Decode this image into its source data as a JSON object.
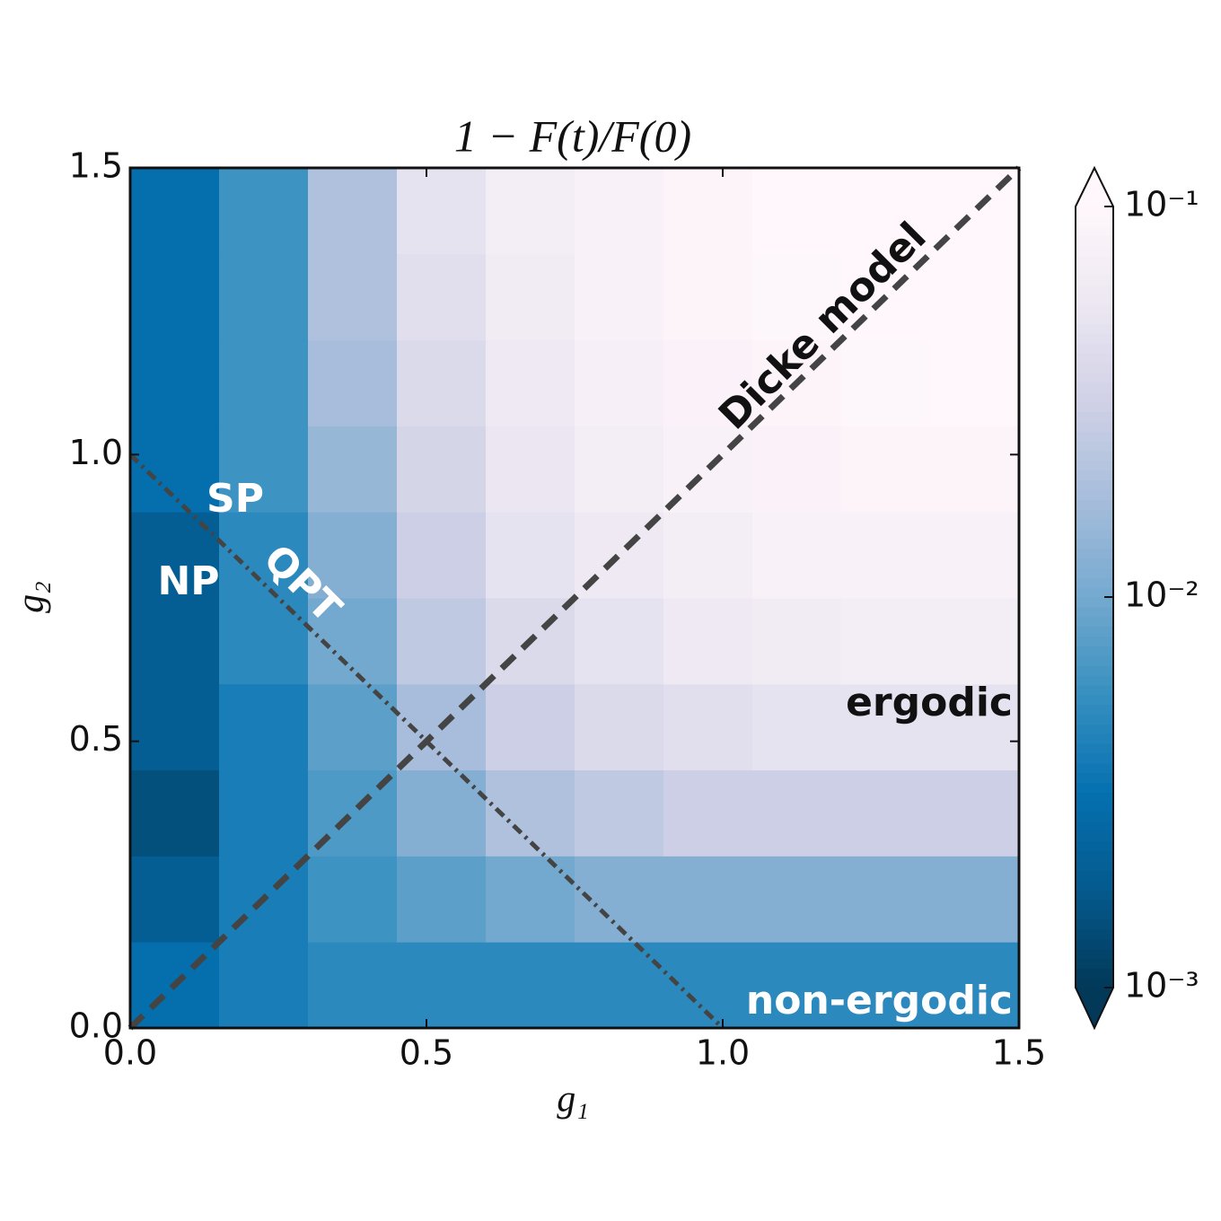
{
  "chart_data": {
    "type": "heatmap",
    "title": "1 − F(t)/F(0)",
    "xlabel": "g₁",
    "ylabel": "g₂",
    "x": [
      0.075,
      0.225,
      0.375,
      0.525,
      0.675,
      0.825,
      0.975,
      1.125,
      1.275,
      1.425
    ],
    "y": [
      0.075,
      0.225,
      0.375,
      0.525,
      0.675,
      0.825,
      0.975,
      1.125,
      1.275,
      1.425
    ],
    "values": [
      [
        0.003,
        0.004,
        0.005,
        0.005,
        0.005,
        0.005,
        0.005,
        0.005,
        0.005,
        0.005
      ],
      [
        0.002,
        0.004,
        0.006,
        0.008,
        0.01,
        0.012,
        0.012,
        0.012,
        0.012,
        0.012
      ],
      [
        0.0015,
        0.004,
        0.007,
        0.012,
        0.02,
        0.025,
        0.03,
        0.03,
        0.03,
        0.03
      ],
      [
        0.002,
        0.004,
        0.008,
        0.018,
        0.03,
        0.04,
        0.045,
        0.05,
        0.05,
        0.05
      ],
      [
        0.002,
        0.005,
        0.01,
        0.025,
        0.04,
        0.05,
        0.06,
        0.065,
        0.07,
        0.07
      ],
      [
        0.002,
        0.005,
        0.012,
        0.03,
        0.05,
        0.06,
        0.07,
        0.08,
        0.08,
        0.08
      ],
      [
        0.003,
        0.006,
        0.015,
        0.035,
        0.055,
        0.07,
        0.08,
        0.085,
        0.09,
        0.09
      ],
      [
        0.003,
        0.006,
        0.018,
        0.04,
        0.06,
        0.075,
        0.085,
        0.09,
        0.095,
        0.1
      ],
      [
        0.003,
        0.006,
        0.02,
        0.045,
        0.065,
        0.08,
        0.09,
        0.095,
        0.1,
        0.1
      ],
      [
        0.003,
        0.006,
        0.02,
        0.05,
        0.07,
        0.08,
        0.09,
        0.1,
        0.1,
        0.1
      ]
    ],
    "xlim": [
      0,
      1.5
    ],
    "ylim": [
      0,
      1.5
    ],
    "xticks": [
      {
        "value": 0,
        "label": "0.0"
      },
      0.5,
      {
        "value": 1,
        "label": "1.0"
      },
      1.5
    ],
    "yticks": [
      {
        "value": 0,
        "label": "0.0"
      },
      0.5,
      {
        "value": 1,
        "label": "1.0"
      },
      1.5
    ],
    "color_scale": "log",
    "clim": [
      0.001,
      0.1
    ],
    "cticks": [
      {
        "value": 0.001,
        "label": "10⁻³"
      },
      {
        "value": 0.01,
        "label": "10⁻²"
      },
      {
        "value": 0.1,
        "label": "10⁻¹"
      }
    ],
    "colormap": [
      "#023858",
      "#045a8d",
      "#0570b0",
      "#3690c0",
      "#74a9cf",
      "#a6bddb",
      "#d0d1e6",
      "#ece7f2",
      "#fff7fb"
    ],
    "lines": [
      {
        "x": [
          0,
          1.5
        ],
        "y": [
          0,
          1.5
        ],
        "style": "dashed",
        "color": "#444444"
      },
      {
        "x": [
          0,
          1
        ],
        "y": [
          1,
          0
        ],
        "style": "dashdot",
        "color": "#444444"
      }
    ],
    "annotations": [
      "SP",
      "NP",
      "QPT",
      "Dicke model",
      "ergodic",
      "non-ergodic"
    ]
  }
}
